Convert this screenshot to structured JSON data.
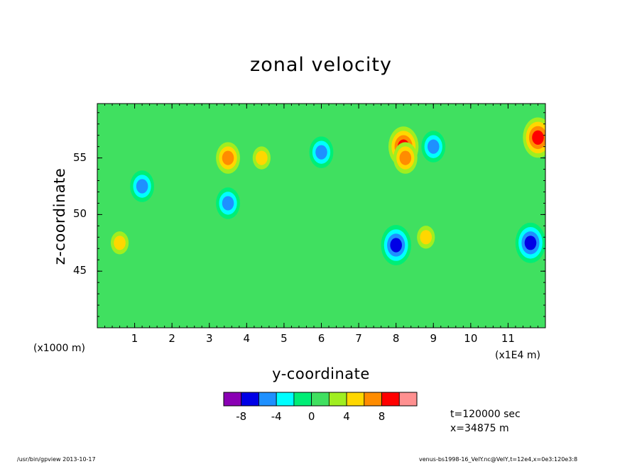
{
  "chart_data": {
    "type": "heatmap",
    "title": "zonal velocity",
    "xlabel": "y-coordinate",
    "ylabel": "z-coordinate",
    "x_unit_left": "(x1000 m)",
    "x_unit_right": "(x1E4 m)",
    "x_ticks": [
      "1",
      "2",
      "3",
      "4",
      "5",
      "6",
      "7",
      "8",
      "9",
      "10",
      "11"
    ],
    "x_tick_values": [
      1,
      2,
      3,
      4,
      5,
      6,
      7,
      8,
      9,
      10,
      11
    ],
    "xlim": [
      0,
      12
    ],
    "y_ticks": [
      "45",
      "50",
      "55"
    ],
    "y_tick_values": [
      45,
      50,
      55
    ],
    "ylim": [
      40,
      59.8
    ],
    "background_level_color": "#40e060",
    "features": [
      {
        "x": 8.2,
        "y": 56.0,
        "value": 8
      },
      {
        "x": 8.25,
        "y": 55.0,
        "value": 6
      },
      {
        "x": 3.5,
        "y": 55.0,
        "value": 5
      },
      {
        "x": 11.8,
        "y": 56.8,
        "value": 7
      },
      {
        "x": 6.0,
        "y": 55.5,
        "value": -5
      },
      {
        "x": 8.0,
        "y": 47.3,
        "value": -7
      },
      {
        "x": 11.6,
        "y": 47.5,
        "value": -7
      },
      {
        "x": 3.5,
        "y": 51.0,
        "value": -5
      },
      {
        "x": 1.2,
        "y": 52.5,
        "value": -5
      },
      {
        "x": 9.0,
        "y": 56.0,
        "value": -5
      },
      {
        "x": 4.4,
        "y": 55.0,
        "value": 3
      },
      {
        "x": 8.8,
        "y": 48.0,
        "value": 3
      },
      {
        "x": 0.6,
        "y": 47.5,
        "value": 3
      }
    ],
    "colorbar": {
      "colors": [
        "#8a00b4",
        "#0000e6",
        "#1e90ff",
        "#00ffff",
        "#00ee76",
        "#40e060",
        "#a0ee20",
        "#ffd700",
        "#ff8c00",
        "#ff0000",
        "#ff9090"
      ],
      "tick_labels": [
        "-8",
        "-4",
        "0",
        "4",
        "8"
      ],
      "tick_values": [
        -8,
        -4,
        0,
        4,
        8
      ]
    }
  },
  "info": {
    "time": "t=120000 sec",
    "position": "x=34875 m"
  },
  "footer": {
    "left": "/usr/bin/gpview  2013-10-17",
    "right": "venus-bs1998-16_VelY.nc@VelY,t=12e4,x=0e3:120e3:8"
  }
}
